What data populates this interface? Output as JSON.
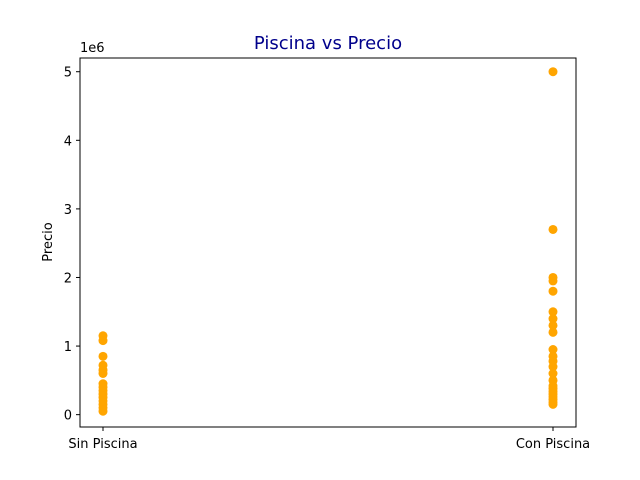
{
  "chart_data": {
    "type": "scatter",
    "title": "Piscina vs Precio",
    "title_color": "#00008B",
    "xlabel": "",
    "ylabel": "Precio",
    "y_offset_label": "1e6",
    "y_scale_factor": 1000000,
    "categories": [
      "Sin Piscina",
      "Con Piscina"
    ],
    "ylim": [
      -180000,
      5200000
    ],
    "yticks": [
      0,
      1000000,
      2000000,
      3000000,
      4000000,
      5000000
    ],
    "ytick_labels": [
      "0",
      "1",
      "2",
      "3",
      "4",
      "5"
    ],
    "grid": false,
    "marker_color": "#FFA500",
    "series": [
      {
        "points": [
          {
            "x": "Sin Piscina",
            "y": 50000
          },
          {
            "x": "Sin Piscina",
            "y": 100000
          },
          {
            "x": "Sin Piscina",
            "y": 150000
          },
          {
            "x": "Sin Piscina",
            "y": 200000
          },
          {
            "x": "Sin Piscina",
            "y": 250000
          },
          {
            "x": "Sin Piscina",
            "y": 300000
          },
          {
            "x": "Sin Piscina",
            "y": 350000
          },
          {
            "x": "Sin Piscina",
            "y": 400000
          },
          {
            "x": "Sin Piscina",
            "y": 450000
          },
          {
            "x": "Sin Piscina",
            "y": 600000
          },
          {
            "x": "Sin Piscina",
            "y": 650000
          },
          {
            "x": "Sin Piscina",
            "y": 720000
          },
          {
            "x": "Sin Piscina",
            "y": 850000
          },
          {
            "x": "Sin Piscina",
            "y": 1080000
          },
          {
            "x": "Sin Piscina",
            "y": 1150000
          },
          {
            "x": "Con Piscina",
            "y": 150000
          },
          {
            "x": "Con Piscina",
            "y": 180000
          },
          {
            "x": "Con Piscina",
            "y": 220000
          },
          {
            "x": "Con Piscina",
            "y": 260000
          },
          {
            "x": "Con Piscina",
            "y": 300000
          },
          {
            "x": "Con Piscina",
            "y": 340000
          },
          {
            "x": "Con Piscina",
            "y": 380000
          },
          {
            "x": "Con Piscina",
            "y": 420000
          },
          {
            "x": "Con Piscina",
            "y": 500000
          },
          {
            "x": "Con Piscina",
            "y": 600000
          },
          {
            "x": "Con Piscina",
            "y": 700000
          },
          {
            "x": "Con Piscina",
            "y": 780000
          },
          {
            "x": "Con Piscina",
            "y": 850000
          },
          {
            "x": "Con Piscina",
            "y": 950000
          },
          {
            "x": "Con Piscina",
            "y": 1200000
          },
          {
            "x": "Con Piscina",
            "y": 1300000
          },
          {
            "x": "Con Piscina",
            "y": 1400000
          },
          {
            "x": "Con Piscina",
            "y": 1500000
          },
          {
            "x": "Con Piscina",
            "y": 1800000
          },
          {
            "x": "Con Piscina",
            "y": 1950000
          },
          {
            "x": "Con Piscina",
            "y": 2000000
          },
          {
            "x": "Con Piscina",
            "y": 2700000
          },
          {
            "x": "Con Piscina",
            "y": 5000000
          }
        ]
      }
    ]
  }
}
